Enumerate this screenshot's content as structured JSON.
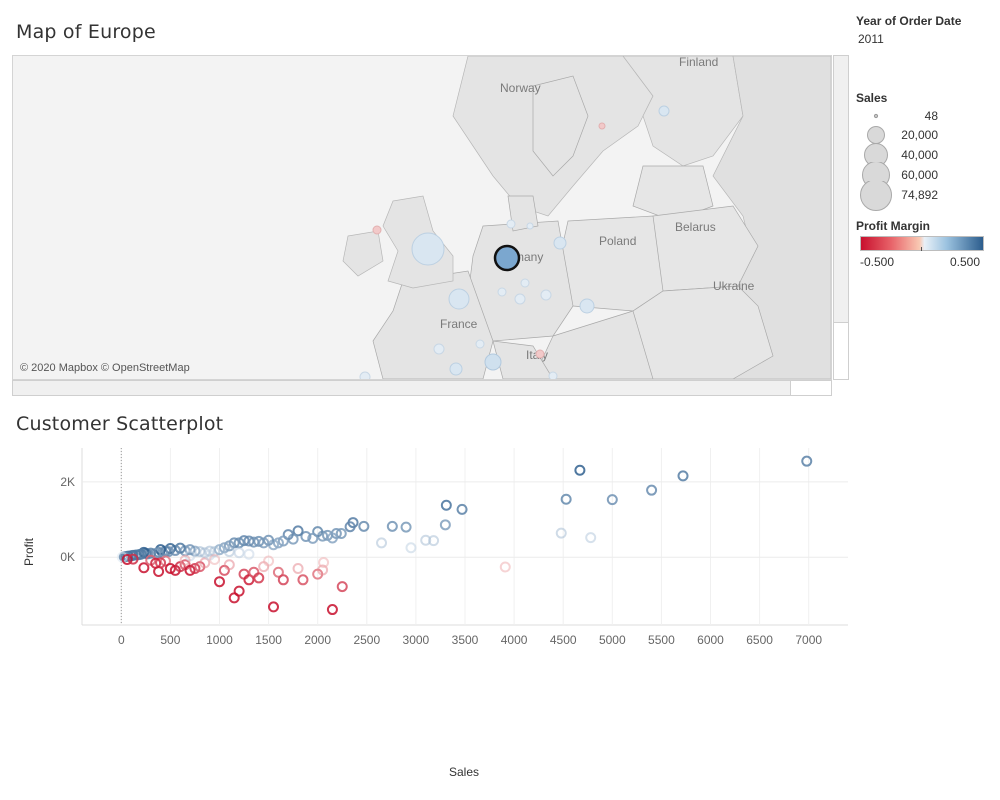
{
  "dashboard": {
    "map_title": "Map of Europe",
    "scatter_title": "Customer Scatterplot"
  },
  "filters": {
    "year": {
      "title": "Year of Order Date",
      "value": "2011"
    }
  },
  "map": {
    "attribution": "© 2020 Mapbox © OpenStreetMap",
    "country_labels": [
      "Finland",
      "Norway",
      "Poland",
      "Belarus",
      "Ukraine",
      "France",
      "Germany",
      "Italy"
    ],
    "highlight_color": "#7ba7cf",
    "bubble_colors": {
      "positive_light": "#d9e6f1",
      "negative_light": "#f2c9c9"
    }
  },
  "legends": {
    "sales": {
      "title": "Sales",
      "items": [
        "48",
        "20,000",
        "40,000",
        "60,000",
        "74,892"
      ]
    },
    "profit_margin": {
      "title": "Profit Margin",
      "min_label": "-0.500",
      "max_label": "0.500",
      "colors": [
        "#c8102e",
        "#e8646a",
        "#f9c9b3",
        "#e9f0f7",
        "#9cc3e0",
        "#2c5d8d"
      ]
    }
  },
  "chart_data": {
    "type": "scatter",
    "title": "Customer Scatterplot",
    "xlabel": "Sales",
    "ylabel": "Profit",
    "xlim": [
      -400,
      7400
    ],
    "ylim": [
      -1800,
      2900
    ],
    "x_ticks": [
      "0",
      "500",
      "1000",
      "1500",
      "2000",
      "2500",
      "3000",
      "3500",
      "4000",
      "4500",
      "5000",
      "5500",
      "6000",
      "6500",
      "7000"
    ],
    "y_ticks": [
      "2K",
      "0K"
    ],
    "grid": true,
    "marker": "hollow-circle",
    "color_by": "Profit Margin",
    "points": [
      {
        "x": 6980,
        "y": 2550,
        "pm": 0.37
      },
      {
        "x": 4670,
        "y": 2310,
        "pm": 0.49
      },
      {
        "x": 5720,
        "y": 2160,
        "pm": 0.38
      },
      {
        "x": 5400,
        "y": 1780,
        "pm": 0.33
      },
      {
        "x": 4530,
        "y": 1540,
        "pm": 0.34
      },
      {
        "x": 5000,
        "y": 1530,
        "pm": 0.31
      },
      {
        "x": 3310,
        "y": 1380,
        "pm": 0.42
      },
      {
        "x": 3470,
        "y": 1270,
        "pm": 0.37
      },
      {
        "x": 4480,
        "y": 640,
        "pm": 0.15
      },
      {
        "x": 4780,
        "y": 520,
        "pm": 0.11
      },
      {
        "x": 3910,
        "y": -260,
        "pm": -0.07
      },
      {
        "x": 3300,
        "y": 860,
        "pm": 0.26
      },
      {
        "x": 3100,
        "y": 450,
        "pm": 0.15
      },
      {
        "x": 3180,
        "y": 440,
        "pm": 0.14
      },
      {
        "x": 2950,
        "y": 250,
        "pm": 0.08
      },
      {
        "x": 2900,
        "y": 800,
        "pm": 0.28
      },
      {
        "x": 2760,
        "y": 820,
        "pm": 0.3
      },
      {
        "x": 2650,
        "y": 380,
        "pm": 0.14
      },
      {
        "x": 2470,
        "y": 820,
        "pm": 0.33
      },
      {
        "x": 2360,
        "y": 920,
        "pm": 0.39
      },
      {
        "x": 2330,
        "y": 810,
        "pm": 0.35
      },
      {
        "x": 2240,
        "y": 630,
        "pm": 0.28
      },
      {
        "x": 2190,
        "y": 630,
        "pm": 0.29
      },
      {
        "x": 2100,
        "y": 580,
        "pm": 0.28
      },
      {
        "x": 2150,
        "y": 510,
        "pm": 0.24
      },
      {
        "x": 2050,
        "y": 560,
        "pm": 0.27
      },
      {
        "x": 2000,
        "y": 680,
        "pm": 0.34
      },
      {
        "x": 1950,
        "y": 500,
        "pm": 0.26
      },
      {
        "x": 1880,
        "y": 550,
        "pm": 0.29
      },
      {
        "x": 1800,
        "y": 700,
        "pm": 0.39
      },
      {
        "x": 1750,
        "y": 480,
        "pm": 0.27
      },
      {
        "x": 1700,
        "y": 600,
        "pm": 0.35
      },
      {
        "x": 1650,
        "y": 430,
        "pm": 0.26
      },
      {
        "x": 1600,
        "y": 380,
        "pm": 0.24
      },
      {
        "x": 1550,
        "y": 330,
        "pm": 0.21
      },
      {
        "x": 1500,
        "y": 450,
        "pm": 0.3
      },
      {
        "x": 1450,
        "y": 380,
        "pm": 0.26
      },
      {
        "x": 1400,
        "y": 420,
        "pm": 0.3
      },
      {
        "x": 1350,
        "y": 400,
        "pm": 0.3
      },
      {
        "x": 1300,
        "y": 430,
        "pm": 0.33
      },
      {
        "x": 1250,
        "y": 440,
        "pm": 0.35
      },
      {
        "x": 1200,
        "y": 380,
        "pm": 0.32
      },
      {
        "x": 1150,
        "y": 380,
        "pm": 0.33
      },
      {
        "x": 1100,
        "y": 300,
        "pm": 0.27
      },
      {
        "x": 1050,
        "y": 250,
        "pm": 0.24
      },
      {
        "x": 1000,
        "y": 200,
        "pm": 0.2
      },
      {
        "x": 950,
        "y": 150,
        "pm": 0.16
      },
      {
        "x": 900,
        "y": 160,
        "pm": 0.18
      },
      {
        "x": 850,
        "y": 120,
        "pm": 0.14
      },
      {
        "x": 800,
        "y": 150,
        "pm": 0.19
      },
      {
        "x": 750,
        "y": 160,
        "pm": 0.21
      },
      {
        "x": 700,
        "y": 200,
        "pm": 0.29
      },
      {
        "x": 650,
        "y": 170,
        "pm": 0.26
      },
      {
        "x": 600,
        "y": 240,
        "pm": 0.4
      },
      {
        "x": 550,
        "y": 180,
        "pm": 0.33
      },
      {
        "x": 500,
        "y": 230,
        "pm": 0.46
      },
      {
        "x": 480,
        "y": 150,
        "pm": 0.31
      },
      {
        "x": 450,
        "y": 160,
        "pm": 0.36
      },
      {
        "x": 420,
        "y": 120,
        "pm": 0.29
      },
      {
        "x": 400,
        "y": 200,
        "pm": 0.5
      },
      {
        "x": 380,
        "y": 130,
        "pm": 0.34
      },
      {
        "x": 350,
        "y": 100,
        "pm": 0.29
      },
      {
        "x": 300,
        "y": 110,
        "pm": 0.37
      },
      {
        "x": 270,
        "y": 90,
        "pm": 0.33
      },
      {
        "x": 250,
        "y": 100,
        "pm": 0.4
      },
      {
        "x": 230,
        "y": 130,
        "pm": 0.5
      },
      {
        "x": 200,
        "y": 80,
        "pm": 0.4
      },
      {
        "x": 180,
        "y": 70,
        "pm": 0.39
      },
      {
        "x": 150,
        "y": 60,
        "pm": 0.4
      },
      {
        "x": 120,
        "y": 50,
        "pm": 0.42
      },
      {
        "x": 100,
        "y": 40,
        "pm": 0.4
      },
      {
        "x": 70,
        "y": 30,
        "pm": 0.43
      },
      {
        "x": 50,
        "y": 20,
        "pm": 0.4
      },
      {
        "x": 30,
        "y": 10,
        "pm": 0.33
      },
      {
        "x": 10,
        "y": 0,
        "pm": 0.0
      },
      {
        "x": 60,
        "y": -60,
        "pm": -0.5
      },
      {
        "x": 120,
        "y": -50,
        "pm": -0.42
      },
      {
        "x": 230,
        "y": -280,
        "pm": -0.5
      },
      {
        "x": 380,
        "y": -380,
        "pm": -0.5
      },
      {
        "x": 300,
        "y": -80,
        "pm": -0.27
      },
      {
        "x": 450,
        "y": -100,
        "pm": -0.22
      },
      {
        "x": 500,
        "y": -300,
        "pm": -0.5
      },
      {
        "x": 550,
        "y": -350,
        "pm": -0.5
      },
      {
        "x": 600,
        "y": -250,
        "pm": -0.42
      },
      {
        "x": 650,
        "y": -200,
        "pm": -0.31
      },
      {
        "x": 700,
        "y": -350,
        "pm": -0.5
      },
      {
        "x": 750,
        "y": -300,
        "pm": -0.4
      },
      {
        "x": 800,
        "y": -250,
        "pm": -0.31
      },
      {
        "x": 850,
        "y": -150,
        "pm": -0.18
      },
      {
        "x": 1000,
        "y": -650,
        "pm": -0.5
      },
      {
        "x": 1050,
        "y": -350,
        "pm": -0.33
      },
      {
        "x": 1100,
        "y": -200,
        "pm": -0.18
      },
      {
        "x": 1150,
        "y": -1080,
        "pm": -0.5
      },
      {
        "x": 1200,
        "y": -900,
        "pm": -0.5
      },
      {
        "x": 1250,
        "y": -450,
        "pm": -0.36
      },
      {
        "x": 1300,
        "y": -600,
        "pm": -0.46
      },
      {
        "x": 1350,
        "y": -400,
        "pm": -0.3
      },
      {
        "x": 1400,
        "y": -550,
        "pm": -0.39
      },
      {
        "x": 1450,
        "y": -250,
        "pm": -0.17
      },
      {
        "x": 1500,
        "y": -100,
        "pm": -0.07
      },
      {
        "x": 1550,
        "y": -1320,
        "pm": -0.5
      },
      {
        "x": 1600,
        "y": -400,
        "pm": -0.25
      },
      {
        "x": 1650,
        "y": -600,
        "pm": -0.36
      },
      {
        "x": 1800,
        "y": -300,
        "pm": -0.17
      },
      {
        "x": 1850,
        "y": -600,
        "pm": -0.32
      },
      {
        "x": 2000,
        "y": -450,
        "pm": -0.23
      },
      {
        "x": 2050,
        "y": -340,
        "pm": -0.17
      },
      {
        "x": 2060,
        "y": -140,
        "pm": -0.07
      },
      {
        "x": 2150,
        "y": -1390,
        "pm": -0.5
      },
      {
        "x": 2250,
        "y": -780,
        "pm": -0.35
      },
      {
        "x": 1100,
        "y": 150,
        "pm": 0.14
      },
      {
        "x": 1200,
        "y": 120,
        "pm": 0.1
      },
      {
        "x": 1300,
        "y": 80,
        "pm": 0.06
      },
      {
        "x": 900,
        "y": 60,
        "pm": 0.07
      },
      {
        "x": 950,
        "y": -60,
        "pm": -0.06
      },
      {
        "x": 700,
        "y": 40,
        "pm": 0.06
      },
      {
        "x": 650,
        "y": -80,
        "pm": -0.12
      },
      {
        "x": 400,
        "y": -150,
        "pm": -0.38
      },
      {
        "x": 350,
        "y": -160,
        "pm": -0.46
      }
    ]
  }
}
